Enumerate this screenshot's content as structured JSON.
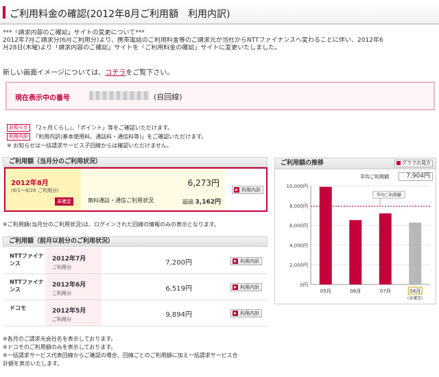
{
  "page": {
    "title": "ご利用料金の確認(2012年8月ご利用額　利用内訳)",
    "notice_lines": [
      "***「請求内容のご確認」サイトの変更について***",
      "2012年7月ご請求分(6月ご利用分)より、携帯電話のご利用料金等のご請求元が当社からNTTファイナンスへ変わることに伴い、2012年6",
      "月28日(木曜)より「請求内容のご確認」サイトを「ご利用料金の確認」サイトに変更いたしました。"
    ],
    "preview_text": "新しい画面イメージについては、",
    "preview_link": "コチラ",
    "preview_suffix": "をご覧下さい。"
  },
  "current_number": {
    "label": "現在表示中の番号",
    "kind": "(自回線)"
  },
  "info_notes": [
    {
      "tag": "お知らせ",
      "text": "「2ヶ月くらし」、「ポイント」等をご確認いただけます。"
    },
    {
      "tag": "利用内訳",
      "text": "「利用内訳(基本使用料、通話料・通信料等)」をご確認いただけます。"
    },
    {
      "tag": "",
      "text": "※  お知らせは一括請求サービス子回線からは確認いただけません。"
    }
  ],
  "current_usage": {
    "section_title": "ご利用額（当月分のご利用状況）",
    "year_month": "2012年8月",
    "range": "(8/1～8/26 ご利用分)",
    "status": "未確定",
    "amount": "6,273円",
    "free_label": "無料通話・通信ご利用状況",
    "over_label": "超過",
    "over_amount": "3,162円",
    "button": "利用内訳"
  },
  "current_note": "※ご利用額(当月分のご利用状況)は、ログインされた回線の情報のみの表示となります。",
  "past_usage": {
    "section_title": "ご利用額（前月以前分のご利用状況）",
    "rows": [
      {
        "carrier": "NTTファイナンス",
        "year_month": "2012年7月",
        "sub": "ご利用分",
        "amount": "7,200円",
        "button": "利用内訳"
      },
      {
        "carrier": "NTTファイナンス",
        "year_month": "2012年6月",
        "sub": "ご利用分",
        "amount": "6,519円",
        "button": "利用内訳"
      },
      {
        "carrier": "ドコモ",
        "year_month": "2012年5月",
        "sub": "ご利用分",
        "amount": "9,894円",
        "button": "利用内訳"
      }
    ]
  },
  "footer_notes": [
    "※各月のご請求元会社名を表示しております。",
    "※ドコモのご利用額のみを表示しております。",
    "※一括請求サービス代表回線からご確認の場合、回線ごとのご利用額に加え一括請求サービス合",
    "計額を表示いたします。"
  ],
  "chart_panel": {
    "title": "ご利用額の推移",
    "graph_button": "グラフの見方",
    "avg_label": "平均ご利用額",
    "avg_value": "7,904円",
    "avg_line_label": "平均ご利用額"
  },
  "chart_data": {
    "type": "bar",
    "categories": [
      "05月",
      "06月",
      "07月",
      "08月"
    ],
    "values": [
      9894,
      6519,
      7200,
      6273
    ],
    "ylim": [
      0,
      10000
    ],
    "yticks": [
      "0円",
      "2,000円",
      "4,000円",
      "6,000円",
      "8,000円",
      "10,000円"
    ],
    "ytick_values": [
      0,
      2000,
      4000,
      6000,
      8000,
      10000
    ],
    "average": 7904,
    "last_sublabel": "(未確定)",
    "colors": {
      "bar": "#c4003a",
      "pending": "#b8b8b8",
      "avg": "#c4003a"
    }
  }
}
